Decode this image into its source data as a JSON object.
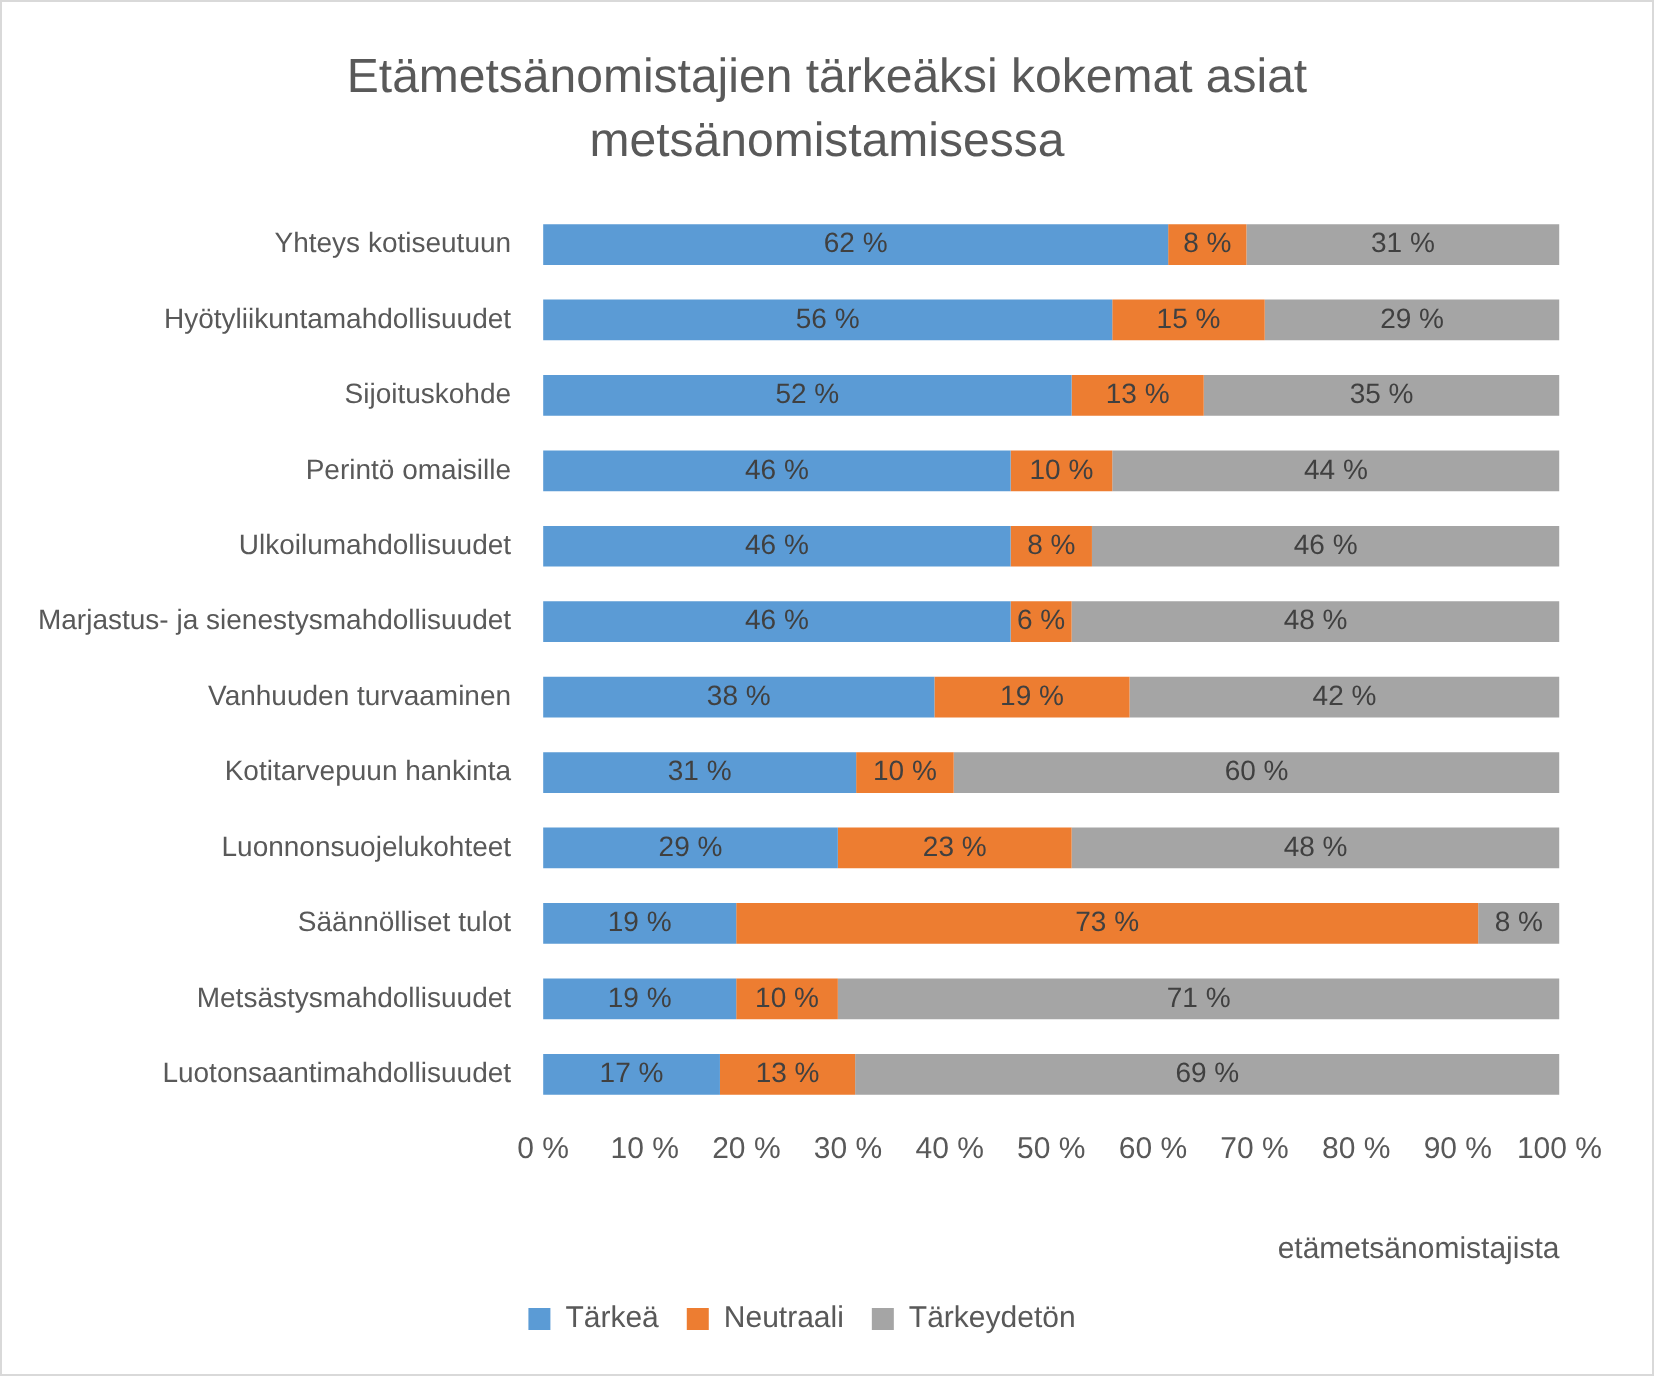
{
  "chart_data": {
    "type": "bar",
    "orientation": "horizontal",
    "stacked": true,
    "title": "Etämetsänomistajien tärkeäksi kokemat asiat metsänomistamisessa",
    "xlabel": "etämetsänomistajista",
    "categories": [
      "Yhteys kotiseutuun",
      "Hyötyliikuntamahdollisuudet",
      "Sijoituskohde",
      "Perintö omaisille",
      "Ulkoilumahdollisuudet",
      "Marjastus- ja sienestysmahdollisuudet",
      "Vanhuuden turvaaminen",
      "Kotitarvepuun hankinta",
      "Luonnonsuojelukohteet",
      "Säännölliset tulot",
      "Metsästysmahdollisuudet",
      "Luotonsaantimahdollisuudet"
    ],
    "series": [
      {
        "name": "Tärkeä",
        "color": "#5b9bd5",
        "values": [
          61.5,
          56,
          52,
          46,
          46,
          46,
          38.5,
          30.8,
          29,
          19,
          19,
          17.4
        ],
        "value_labels": [
          "62 %",
          "56 %",
          "52 %",
          "46 %",
          "46 %",
          "46 %",
          "38 %",
          "31 %",
          "29 %",
          "19 %",
          "19 %",
          "17 %"
        ]
      },
      {
        "name": "Neutraali",
        "color": "#ed7d31",
        "values": [
          7.7,
          15,
          13,
          10,
          8,
          6,
          19.2,
          9.6,
          23,
          73,
          10,
          13.3
        ],
        "value_labels": [
          "8 %",
          "15 %",
          "13 %",
          "10 %",
          "8 %",
          "6 %",
          "19 %",
          "10 %",
          "23 %",
          "73 %",
          "10 %",
          "13 %"
        ]
      },
      {
        "name": "Tärkeydetön",
        "color": "#a5a5a5",
        "values": [
          30.8,
          29,
          35,
          44,
          46,
          48,
          42.3,
          59.6,
          48,
          8,
          71,
          69.3
        ],
        "value_labels": [
          "31 %",
          "29 %",
          "35 %",
          "44 %",
          "46 %",
          "48 %",
          "42 %",
          "60 %",
          "48 %",
          "8 %",
          "71 %",
          "69 %"
        ]
      }
    ],
    "xlim": [
      0,
      100
    ],
    "xticks": [
      {
        "value": 0,
        "label": "0 %"
      },
      {
        "value": 10,
        "label": "10 %"
      },
      {
        "value": 20,
        "label": "20 %"
      },
      {
        "value": 30,
        "label": "30 %"
      },
      {
        "value": 40,
        "label": "40 %"
      },
      {
        "value": 50,
        "label": "50 %"
      },
      {
        "value": 60,
        "label": "60 %"
      },
      {
        "value": 70,
        "label": "70 %"
      },
      {
        "value": 80,
        "label": "80 %"
      },
      {
        "value": 90,
        "label": "90 %"
      },
      {
        "value": 100,
        "label": "100 %"
      }
    ],
    "grid": false,
    "legend": "bottom"
  }
}
